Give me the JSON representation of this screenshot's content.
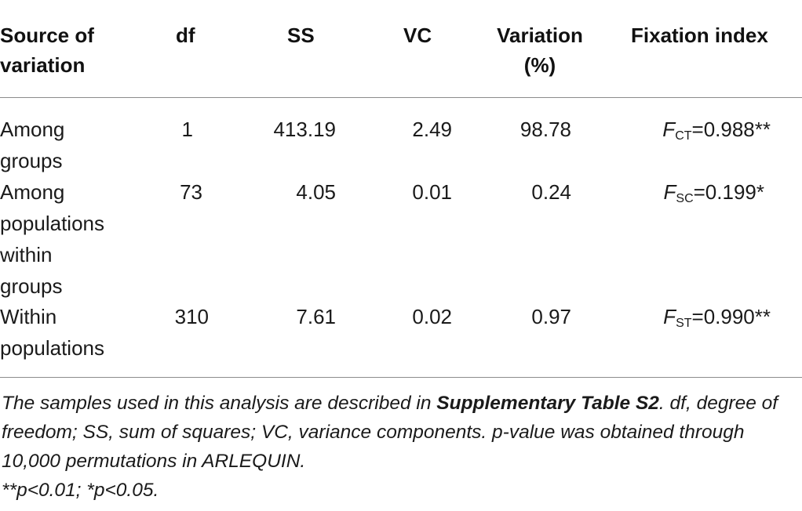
{
  "header": {
    "source": "Source of variation",
    "source_line1": "Source of",
    "source_line2": "variation",
    "df": "df",
    "ss": "SS",
    "vc": "VC",
    "variation_line1": "Variation",
    "variation_line2": "(%)",
    "fixation": "Fixation index"
  },
  "rows": [
    {
      "source_lines": [
        "Among",
        "groups"
      ],
      "df": "1",
      "ss": "413.19",
      "vc": "2.49",
      "variation": "98.78",
      "fix_letter": "F",
      "fix_sub": "CT",
      "fix_value": "=0.988**"
    },
    {
      "source_lines": [
        "Among",
        "populations",
        "within",
        "groups"
      ],
      "df": "73",
      "ss": "4.05",
      "vc": "0.01",
      "variation": "0.24",
      "fix_letter": "F",
      "fix_sub": "SC",
      "fix_value": "=0.199*"
    },
    {
      "source_lines": [
        "Within",
        "populations"
      ],
      "df": "310",
      "ss": "7.61",
      "vc": "0.02",
      "variation": "0.97",
      "fix_letter": "F",
      "fix_sub": "ST",
      "fix_value": "=0.990**"
    }
  ],
  "footnote": {
    "part1": "The samples used in this analysis are described in ",
    "bold": "Supplementary Table S2",
    "part2": ". df, degree of freedom; SS, sum of squares; VC, variance components. p-value was obtained through 10,000 permutations in ARLEQUIN.",
    "significance": "**p<0.01; *p<0.05."
  }
}
